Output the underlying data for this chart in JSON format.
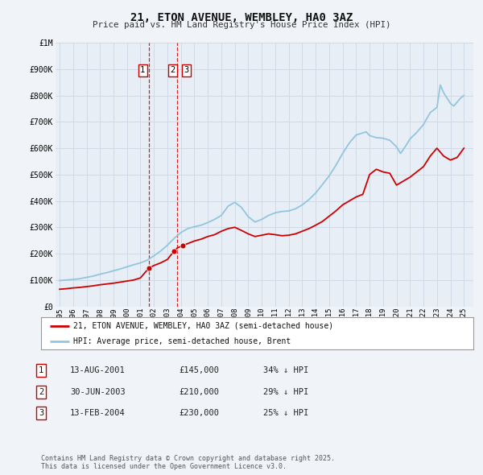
{
  "title": "21, ETON AVENUE, WEMBLEY, HA0 3AZ",
  "subtitle": "Price paid vs. HM Land Registry's House Price Index (HPI)",
  "background_color": "#f0f4f8",
  "plot_bg_color": "#e8eef5",
  "grid_color": "#d0dae6",
  "ylim": [
    0,
    1000000
  ],
  "yticks": [
    0,
    100000,
    200000,
    300000,
    400000,
    500000,
    600000,
    700000,
    800000,
    900000,
    1000000
  ],
  "ytick_labels": [
    "£0",
    "£100K",
    "£200K",
    "£300K",
    "£400K",
    "£500K",
    "£600K",
    "£700K",
    "£800K",
    "£900K",
    "£1M"
  ],
  "xlim_start": 1994.7,
  "xlim_end": 2025.7,
  "sale_color": "#cc0000",
  "hpi_color": "#92c5de",
  "sale_label": "21, ETON AVENUE, WEMBLEY, HA0 3AZ (semi-detached house)",
  "hpi_label": "HPI: Average price, semi-detached house, Brent",
  "transactions": [
    {
      "num": 1,
      "date_label": "13-AUG-2001",
      "date_x": 2001.617,
      "price": 145000,
      "price_label": "£145,000",
      "pct": "34%",
      "dir": "↓"
    },
    {
      "num": 2,
      "date_label": "30-JUN-2003",
      "date_x": 2003.497,
      "price": 210000,
      "price_label": "£210,000",
      "pct": "29%",
      "dir": "↓"
    },
    {
      "num": 3,
      "date_label": "13-FEB-2004",
      "date_x": 2004.117,
      "price": 230000,
      "price_label": "£230,000",
      "pct": "25%",
      "dir": "↓"
    }
  ],
  "vline1_x": 2001.617,
  "vline2_x": 2003.748,
  "sale_prices": [
    [
      1995.0,
      65000
    ],
    [
      1995.5,
      67000
    ],
    [
      1996.0,
      70000
    ],
    [
      1996.5,
      72000
    ],
    [
      1997.0,
      75000
    ],
    [
      1997.5,
      78000
    ],
    [
      1998.0,
      82000
    ],
    [
      1998.5,
      85000
    ],
    [
      1999.0,
      88000
    ],
    [
      1999.5,
      92000
    ],
    [
      2000.0,
      96000
    ],
    [
      2000.5,
      100000
    ],
    [
      2001.0,
      108000
    ],
    [
      2001.617,
      145000
    ],
    [
      2002.0,
      155000
    ],
    [
      2002.5,
      165000
    ],
    [
      2003.0,
      178000
    ],
    [
      2003.497,
      210000
    ],
    [
      2003.75,
      222000
    ],
    [
      2004.117,
      230000
    ],
    [
      2004.5,
      238000
    ],
    [
      2005.0,
      248000
    ],
    [
      2005.5,
      255000
    ],
    [
      2006.0,
      265000
    ],
    [
      2006.5,
      272000
    ],
    [
      2007.0,
      285000
    ],
    [
      2007.5,
      295000
    ],
    [
      2008.0,
      300000
    ],
    [
      2008.5,
      288000
    ],
    [
      2009.0,
      275000
    ],
    [
      2009.5,
      265000
    ],
    [
      2010.0,
      270000
    ],
    [
      2010.5,
      275000
    ],
    [
      2011.0,
      272000
    ],
    [
      2011.5,
      268000
    ],
    [
      2012.0,
      270000
    ],
    [
      2012.5,
      275000
    ],
    [
      2013.0,
      285000
    ],
    [
      2013.5,
      295000
    ],
    [
      2014.0,
      308000
    ],
    [
      2014.5,
      322000
    ],
    [
      2015.0,
      342000
    ],
    [
      2015.5,
      362000
    ],
    [
      2016.0,
      385000
    ],
    [
      2016.5,
      400000
    ],
    [
      2017.0,
      415000
    ],
    [
      2017.5,
      425000
    ],
    [
      2018.0,
      500000
    ],
    [
      2018.5,
      520000
    ],
    [
      2019.0,
      510000
    ],
    [
      2019.5,
      505000
    ],
    [
      2020.0,
      460000
    ],
    [
      2020.5,
      475000
    ],
    [
      2021.0,
      490000
    ],
    [
      2021.5,
      510000
    ],
    [
      2022.0,
      530000
    ],
    [
      2022.5,
      570000
    ],
    [
      2023.0,
      600000
    ],
    [
      2023.5,
      570000
    ],
    [
      2024.0,
      555000
    ],
    [
      2024.5,
      565000
    ],
    [
      2025.0,
      600000
    ]
  ],
  "hpi_prices": [
    [
      1995.0,
      98000
    ],
    [
      1995.5,
      100000
    ],
    [
      1996.0,
      102000
    ],
    [
      1996.5,
      105000
    ],
    [
      1997.0,
      110000
    ],
    [
      1997.5,
      115000
    ],
    [
      1998.0,
      122000
    ],
    [
      1998.5,
      128000
    ],
    [
      1999.0,
      135000
    ],
    [
      1999.5,
      142000
    ],
    [
      2000.0,
      150000
    ],
    [
      2000.5,
      158000
    ],
    [
      2001.0,
      165000
    ],
    [
      2001.5,
      175000
    ],
    [
      2002.0,
      192000
    ],
    [
      2002.5,
      210000
    ],
    [
      2003.0,
      232000
    ],
    [
      2003.5,
      258000
    ],
    [
      2004.0,
      280000
    ],
    [
      2004.5,
      295000
    ],
    [
      2005.0,
      302000
    ],
    [
      2005.5,
      308000
    ],
    [
      2006.0,
      318000
    ],
    [
      2006.5,
      330000
    ],
    [
      2007.0,
      345000
    ],
    [
      2007.5,
      380000
    ],
    [
      2008.0,
      395000
    ],
    [
      2008.5,
      375000
    ],
    [
      2009.0,
      340000
    ],
    [
      2009.5,
      320000
    ],
    [
      2010.0,
      330000
    ],
    [
      2010.5,
      345000
    ],
    [
      2011.0,
      355000
    ],
    [
      2011.5,
      360000
    ],
    [
      2012.0,
      362000
    ],
    [
      2012.5,
      370000
    ],
    [
      2013.0,
      385000
    ],
    [
      2013.5,
      405000
    ],
    [
      2014.0,
      430000
    ],
    [
      2014.5,
      462000
    ],
    [
      2015.0,
      495000
    ],
    [
      2015.5,
      535000
    ],
    [
      2016.0,
      580000
    ],
    [
      2016.5,
      620000
    ],
    [
      2017.0,
      650000
    ],
    [
      2017.5,
      658000
    ],
    [
      2017.75,
      662000
    ],
    [
      2018.0,
      648000
    ],
    [
      2018.5,
      640000
    ],
    [
      2019.0,
      638000
    ],
    [
      2019.5,
      630000
    ],
    [
      2020.0,
      605000
    ],
    [
      2020.3,
      580000
    ],
    [
      2020.7,
      610000
    ],
    [
      2021.0,
      635000
    ],
    [
      2021.5,
      660000
    ],
    [
      2022.0,
      690000
    ],
    [
      2022.5,
      735000
    ],
    [
      2023.0,
      755000
    ],
    [
      2023.25,
      840000
    ],
    [
      2023.5,
      810000
    ],
    [
      2023.75,
      790000
    ],
    [
      2024.0,
      770000
    ],
    [
      2024.25,
      760000
    ],
    [
      2024.5,
      775000
    ],
    [
      2024.75,
      790000
    ],
    [
      2025.0,
      800000
    ]
  ],
  "footer": "Contains HM Land Registry data © Crown copyright and database right 2025.\nThis data is licensed under the Open Government Licence v3.0.",
  "xtick_years": [
    1995,
    1996,
    1997,
    1998,
    1999,
    2000,
    2001,
    2002,
    2003,
    2004,
    2005,
    2006,
    2007,
    2008,
    2009,
    2010,
    2011,
    2012,
    2013,
    2014,
    2015,
    2016,
    2017,
    2018,
    2019,
    2020,
    2021,
    2022,
    2023,
    2024,
    2025
  ]
}
